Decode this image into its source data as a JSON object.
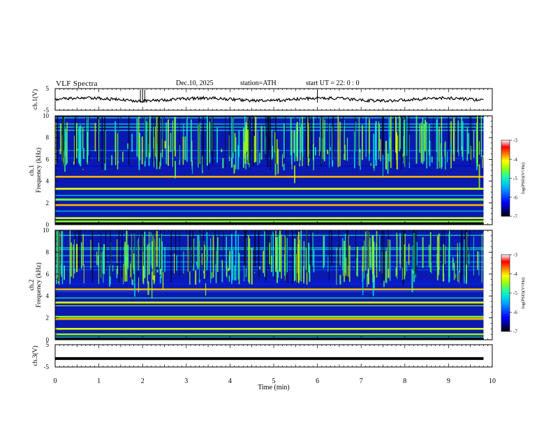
{
  "header": {
    "title": "VLF Spectra",
    "date": "Dec.10, 2025",
    "station": "station=ATH",
    "start_ut": "start  UT  =   22: 0  : 0"
  },
  "chart_data": [
    {
      "type": "line",
      "panel": "ch1-waveform",
      "ylabel": "ch.1(V)",
      "ylim": [
        -5,
        5
      ],
      "yticks": [
        "5",
        "-5"
      ],
      "xlim": [
        0,
        10
      ],
      "x_range_data_min": [
        0,
        9.8
      ],
      "level_approx_V": 0,
      "spikes_at_min": [
        1.95,
        2.0,
        2.05,
        6.0
      ]
    },
    {
      "type": "heatmap",
      "panel": "ch1-spectrogram",
      "ylabel": "ch.1\nFrequency (kHz)",
      "ylim": [
        0,
        10
      ],
      "yticks": [
        "0",
        "2",
        "4",
        "6",
        "8",
        "10"
      ],
      "xlim": [
        0,
        9.8
      ],
      "colorbar": {
        "label": "log(PSD)(V²/Hz)",
        "range": [
          -7,
          -3
        ],
        "ticks": [
          "-3",
          "-4",
          "-5",
          "-6",
          "-7"
        ]
      },
      "bands_kHz": [
        0.3,
        0.6,
        1.8,
        2.3,
        3.3,
        4.4
      ]
    },
    {
      "type": "heatmap",
      "panel": "ch2-spectrogram",
      "ylabel": "ch.2\nFrequency (kHz)",
      "ylim": [
        0,
        10
      ],
      "yticks": [
        "0",
        "2",
        "4",
        "6",
        "8",
        "10"
      ],
      "xlim": [
        0,
        9.8
      ],
      "colorbar": {
        "label": "log(PSD)(V²/Hz)",
        "range": [
          -7,
          -3
        ],
        "ticks": [
          "-3",
          "-4",
          "-5",
          "-6",
          "-7"
        ]
      },
      "bands_kHz": [
        0.5,
        1.0,
        1.9,
        2.1,
        3.4,
        4.6
      ]
    },
    {
      "type": "line",
      "panel": "ch3-waveform",
      "ylabel": "ch.3(V)",
      "ylim": [
        -5,
        5
      ],
      "yticks": [
        "5",
        "-5"
      ],
      "xlim": [
        0,
        10
      ],
      "level_approx_V": -1.2
    }
  ],
  "xaxis": {
    "label": "Time  (min)",
    "ticks": [
      "0",
      "1",
      "2",
      "3",
      "4",
      "5",
      "6",
      "7",
      "8",
      "9",
      "10"
    ],
    "range": [
      0,
      10
    ]
  },
  "colors": {
    "colormap": [
      "#000000",
      "#00008b",
      "#0000ff",
      "#0050ff",
      "#00a0ff",
      "#00e0e0",
      "#30ff90",
      "#a0ff00",
      "#ffff00",
      "#ff8000",
      "#ff0000",
      "#ffffff"
    ]
  }
}
